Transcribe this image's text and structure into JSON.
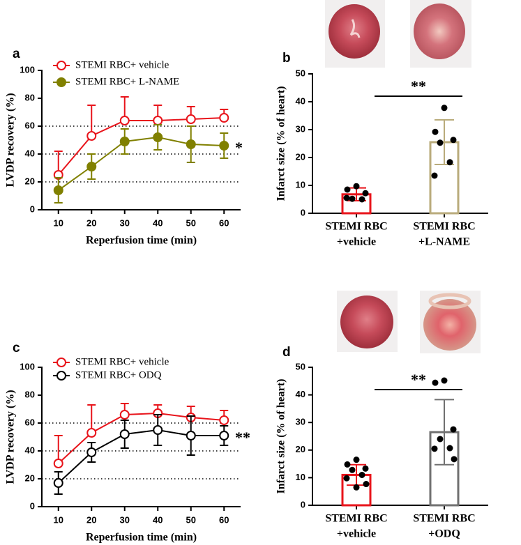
{
  "chart_data": [
    {
      "type": "line",
      "panel": "a",
      "ylabel": "LVDP recovery (%)",
      "xlabel": "Reperfusion time (min)",
      "categories": [
        "10",
        "20",
        "30",
        "40",
        "50",
        "60"
      ],
      "series": [
        {
          "name": "STEMI RBC+ vehicle",
          "color": "#e8141b",
          "marker": "open",
          "error_direction": "up",
          "values": [
            25,
            53,
            64,
            64,
            65,
            66
          ],
          "errors": [
            17,
            22,
            17,
            11,
            9,
            6
          ]
        },
        {
          "name": "STEMI RBC+ L-NAME",
          "color": "#808000",
          "marker": "filled",
          "error_direction": "both",
          "values": [
            14,
            31,
            49,
            52,
            47,
            46
          ],
          "errors": [
            9,
            9,
            9,
            9,
            13,
            9
          ]
        }
      ],
      "ylim": [
        0,
        100
      ],
      "yticks": [
        0,
        20,
        40,
        60,
        80,
        100
      ],
      "reference_lines": [
        20,
        40,
        60
      ],
      "annotation": "*"
    },
    {
      "type": "bar",
      "panel": "b",
      "ylabel": "Infarct size (% of heart)",
      "categories": [
        [
          "STEMI RBC",
          "+vehicle"
        ],
        [
          "STEMI RBC",
          "+L-NAME"
        ]
      ],
      "values": [
        6.8,
        25.5
      ],
      "errors": [
        2.3,
        8
      ],
      "colors": [
        "#e8141b",
        "#b9ab7b"
      ],
      "points": [
        [
          9.7,
          8.5,
          7.2,
          5.2,
          5.0,
          5.5
        ],
        [
          37.8,
          29.2,
          26.3,
          25.3,
          18.3,
          13.5
        ]
      ],
      "ylim": [
        0,
        50
      ],
      "yticks": [
        0,
        10,
        20,
        30,
        40,
        50
      ],
      "annotation": "**"
    },
    {
      "type": "line",
      "panel": "c",
      "ylabel": "LVDP recovery (%)",
      "xlabel": "Reperfusion time (min)",
      "categories": [
        "10",
        "20",
        "30",
        "40",
        "50",
        "60"
      ],
      "series": [
        {
          "name": "STEMI RBC+ vehicle",
          "color": "#e8141b",
          "marker": "open",
          "error_direction": "up",
          "values": [
            31,
            53,
            66,
            67,
            64,
            62
          ],
          "errors": [
            20,
            20,
            8,
            6,
            8,
            7
          ]
        },
        {
          "name": "STEMI RBC+ ODQ",
          "color": "#000000",
          "marker": "open",
          "error_direction": "both",
          "values": [
            17,
            39,
            52,
            55,
            51,
            51
          ],
          "errors": [
            8,
            7,
            10,
            11,
            14,
            7
          ]
        }
      ],
      "ylim": [
        0,
        100
      ],
      "yticks": [
        0,
        20,
        40,
        60,
        80,
        100
      ],
      "reference_lines": [
        20,
        40,
        60
      ],
      "annotation": "**"
    },
    {
      "type": "bar",
      "panel": "d",
      "ylabel": "Infarct size (% of heart)",
      "categories": [
        [
          "STEMI RBC",
          "+vehicle"
        ],
        [
          "STEMI RBC",
          "+ODQ"
        ]
      ],
      "values": [
        11,
        26.5
      ],
      "errors": [
        3.7,
        11.8
      ],
      "colors": [
        "#e8141b",
        "#707070"
      ],
      "points": [
        [
          16.5,
          14.8,
          13.3,
          12.8,
          11,
          9.8,
          7.7,
          6.5
        ],
        [
          45.2,
          44.4,
          27.5,
          24,
          20.7,
          20.5,
          16.7
        ]
      ],
      "ylim": [
        0,
        50
      ],
      "yticks": [
        0,
        10,
        20,
        30,
        40,
        50
      ],
      "annotation": "**"
    }
  ]
}
